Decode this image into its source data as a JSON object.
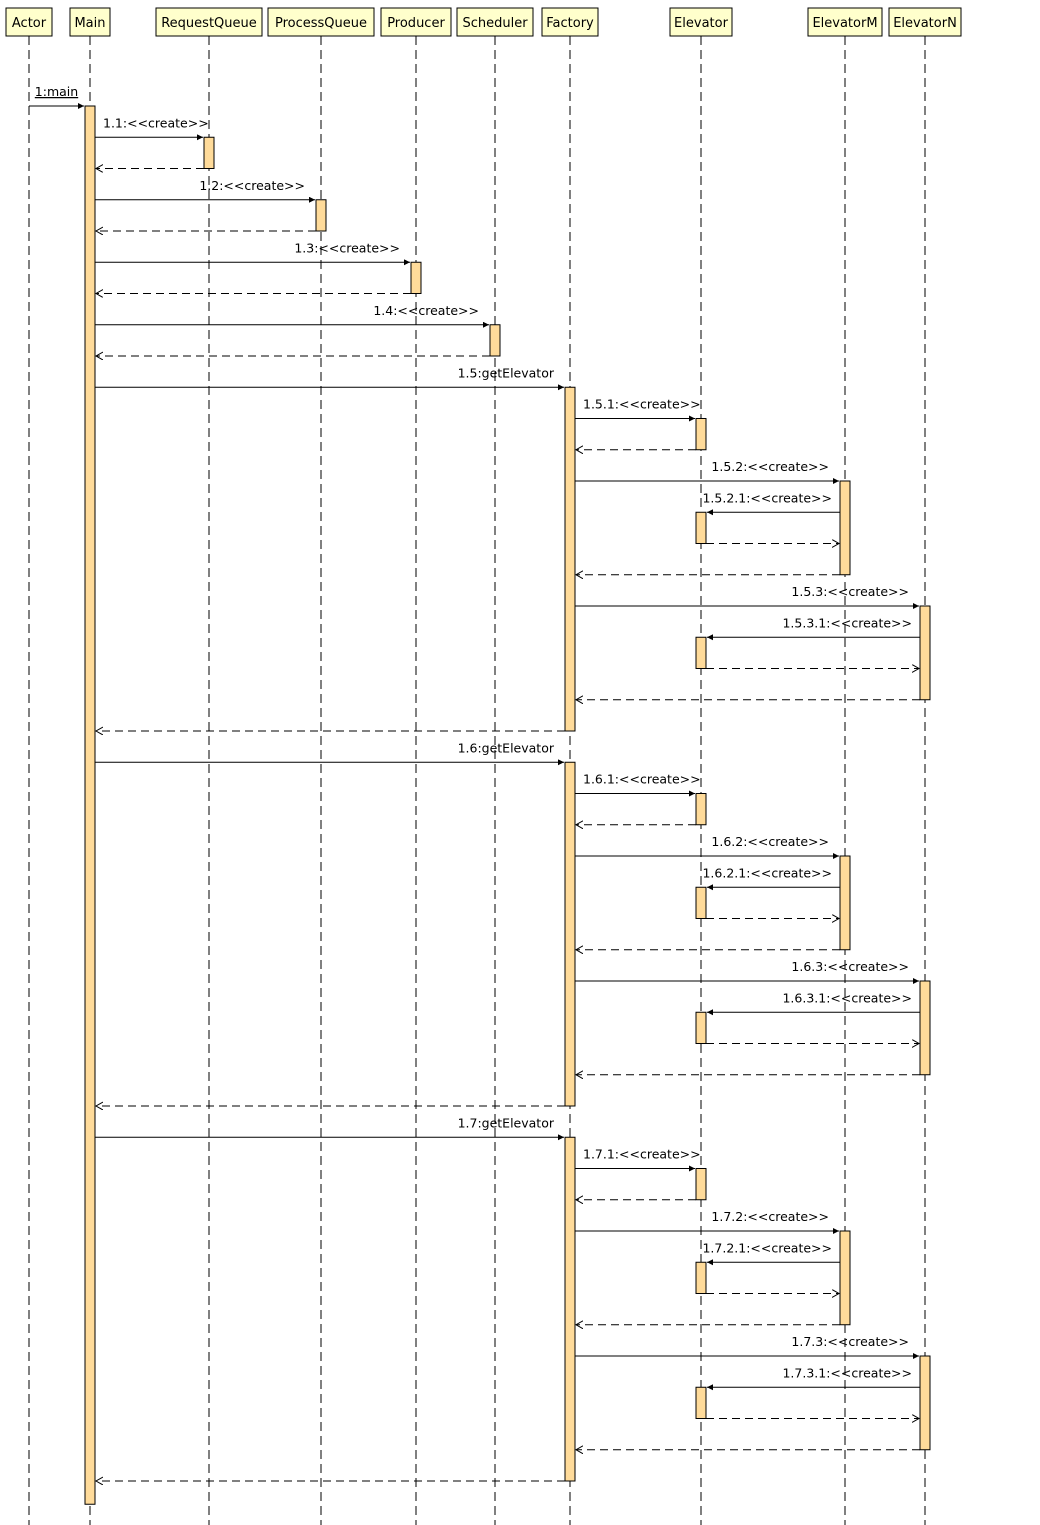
{
  "colors": {
    "participant_fill": "#FFFFCC",
    "activation_fill": "#FFDB9A",
    "line": "#000000",
    "background": "#FFFFFF"
  },
  "participants": [
    {
      "id": "actor",
      "label": "Actor"
    },
    {
      "id": "main",
      "label": "Main"
    },
    {
      "id": "requestqueue",
      "label": "RequestQueue"
    },
    {
      "id": "processqueue",
      "label": "ProcessQueue"
    },
    {
      "id": "producer",
      "label": "Producer"
    },
    {
      "id": "scheduler",
      "label": "Scheduler"
    },
    {
      "id": "factory",
      "label": "Factory"
    },
    {
      "id": "elevator",
      "label": "Elevator"
    },
    {
      "id": "elevatorm",
      "label": "ElevatorM"
    },
    {
      "id": "elevatorn",
      "label": "ElevatorN"
    }
  ],
  "activations": [
    {
      "participant": "main",
      "from": "1",
      "to": "end"
    },
    {
      "participant": "requestqueue",
      "from": "1.1",
      "to": "1.1r"
    },
    {
      "participant": "processqueue",
      "from": "1.2",
      "to": "1.2r"
    },
    {
      "participant": "producer",
      "from": "1.3",
      "to": "1.3r"
    },
    {
      "participant": "scheduler",
      "from": "1.4",
      "to": "1.4r"
    },
    {
      "participant": "factory",
      "from": "1.5",
      "to": "1.5r"
    },
    {
      "participant": "elevator",
      "from": "1.5.1",
      "to": "1.5.1r"
    },
    {
      "participant": "elevatorm",
      "from": "1.5.2",
      "to": "1.5.2r"
    },
    {
      "participant": "elevator",
      "from": "1.5.2.1",
      "to": "1.5.2.1r"
    },
    {
      "participant": "elevatorn",
      "from": "1.5.3",
      "to": "1.5.3r"
    },
    {
      "participant": "elevator",
      "from": "1.5.3.1",
      "to": "1.5.3.1r"
    },
    {
      "participant": "factory",
      "from": "1.6",
      "to": "1.6r"
    },
    {
      "participant": "elevator",
      "from": "1.6.1",
      "to": "1.6.1r"
    },
    {
      "participant": "elevatorm",
      "from": "1.6.2",
      "to": "1.6.2r"
    },
    {
      "participant": "elevator",
      "from": "1.6.2.1",
      "to": "1.6.2.1r"
    },
    {
      "participant": "elevatorn",
      "from": "1.6.3",
      "to": "1.6.3r"
    },
    {
      "participant": "elevator",
      "from": "1.6.3.1",
      "to": "1.6.3.1r"
    },
    {
      "participant": "factory",
      "from": "1.7",
      "to": "1.7r"
    },
    {
      "participant": "elevator",
      "from": "1.7.1",
      "to": "1.7.1r"
    },
    {
      "participant": "elevatorm",
      "from": "1.7.2",
      "to": "1.7.2r"
    },
    {
      "participant": "elevator",
      "from": "1.7.2.1",
      "to": "1.7.2.1r"
    },
    {
      "participant": "elevatorn",
      "from": "1.7.3",
      "to": "1.7.3r"
    },
    {
      "participant": "elevator",
      "from": "1.7.3.1",
      "to": "1.7.3.1r"
    }
  ],
  "messages": [
    {
      "id": "1",
      "from": "actor",
      "to": "main",
      "label": "1:main",
      "kind": "call",
      "underline": true
    },
    {
      "id": "1.1",
      "from": "main",
      "to": "requestqueue",
      "label": "1.1:<<create>>",
      "kind": "call"
    },
    {
      "id": "1.1r",
      "from": "requestqueue",
      "to": "main",
      "label": "",
      "kind": "return"
    },
    {
      "id": "1.2",
      "from": "main",
      "to": "processqueue",
      "label": "1.2:<<create>>",
      "kind": "call"
    },
    {
      "id": "1.2r",
      "from": "processqueue",
      "to": "main",
      "label": "",
      "kind": "return"
    },
    {
      "id": "1.3",
      "from": "main",
      "to": "producer",
      "label": "1.3:<<create>>",
      "kind": "call"
    },
    {
      "id": "1.3r",
      "from": "producer",
      "to": "main",
      "label": "",
      "kind": "return"
    },
    {
      "id": "1.4",
      "from": "main",
      "to": "scheduler",
      "label": "1.4:<<create>>",
      "kind": "call"
    },
    {
      "id": "1.4r",
      "from": "scheduler",
      "to": "main",
      "label": "",
      "kind": "return"
    },
    {
      "id": "1.5",
      "from": "main",
      "to": "factory",
      "label": "1.5:getElevator",
      "kind": "call"
    },
    {
      "id": "1.5.1",
      "from": "factory",
      "to": "elevator",
      "label": "1.5.1:<<create>>",
      "kind": "call"
    },
    {
      "id": "1.5.1r",
      "from": "elevator",
      "to": "factory",
      "label": "",
      "kind": "return"
    },
    {
      "id": "1.5.2",
      "from": "factory",
      "to": "elevatorm",
      "label": "1.5.2:<<create>>",
      "kind": "call"
    },
    {
      "id": "1.5.2.1",
      "from": "elevatorm",
      "to": "elevator",
      "label": "1.5.2.1:<<create>>",
      "kind": "call"
    },
    {
      "id": "1.5.2.1r",
      "from": "elevator",
      "to": "elevatorm",
      "label": "",
      "kind": "return"
    },
    {
      "id": "1.5.2r",
      "from": "elevatorm",
      "to": "factory",
      "label": "",
      "kind": "return"
    },
    {
      "id": "1.5.3",
      "from": "factory",
      "to": "elevatorn",
      "label": "1.5.3:<<create>>",
      "kind": "call"
    },
    {
      "id": "1.5.3.1",
      "from": "elevatorn",
      "to": "elevator",
      "label": "1.5.3.1:<<create>>",
      "kind": "call"
    },
    {
      "id": "1.5.3.1r",
      "from": "elevator",
      "to": "elevatorn",
      "label": "",
      "kind": "return"
    },
    {
      "id": "1.5.3r",
      "from": "elevatorn",
      "to": "factory",
      "label": "",
      "kind": "return"
    },
    {
      "id": "1.5r",
      "from": "factory",
      "to": "main",
      "label": "",
      "kind": "return"
    },
    {
      "id": "1.6",
      "from": "main",
      "to": "factory",
      "label": "1.6:getElevator",
      "kind": "call"
    },
    {
      "id": "1.6.1",
      "from": "factory",
      "to": "elevator",
      "label": "1.6.1:<<create>>",
      "kind": "call"
    },
    {
      "id": "1.6.1r",
      "from": "elevator",
      "to": "factory",
      "label": "",
      "kind": "return"
    },
    {
      "id": "1.6.2",
      "from": "factory",
      "to": "elevatorm",
      "label": "1.6.2:<<create>>",
      "kind": "call"
    },
    {
      "id": "1.6.2.1",
      "from": "elevatorm",
      "to": "elevator",
      "label": "1.6.2.1:<<create>>",
      "kind": "call"
    },
    {
      "id": "1.6.2.1r",
      "from": "elevator",
      "to": "elevatorm",
      "label": "",
      "kind": "return"
    },
    {
      "id": "1.6.2r",
      "from": "elevatorm",
      "to": "factory",
      "label": "",
      "kind": "return"
    },
    {
      "id": "1.6.3",
      "from": "factory",
      "to": "elevatorn",
      "label": "1.6.3:<<create>>",
      "kind": "call"
    },
    {
      "id": "1.6.3.1",
      "from": "elevatorn",
      "to": "elevator",
      "label": "1.6.3.1:<<create>>",
      "kind": "call"
    },
    {
      "id": "1.6.3.1r",
      "from": "elevator",
      "to": "elevatorn",
      "label": "",
      "kind": "return"
    },
    {
      "id": "1.6.3r",
      "from": "elevatorn",
      "to": "factory",
      "label": "",
      "kind": "return"
    },
    {
      "id": "1.6r",
      "from": "factory",
      "to": "main",
      "label": "",
      "kind": "return"
    },
    {
      "id": "1.7",
      "from": "main",
      "to": "factory",
      "label": "1.7:getElevator",
      "kind": "call"
    },
    {
      "id": "1.7.1",
      "from": "factory",
      "to": "elevator",
      "label": "1.7.1:<<create>>",
      "kind": "call"
    },
    {
      "id": "1.7.1r",
      "from": "elevator",
      "to": "factory",
      "label": "",
      "kind": "return"
    },
    {
      "id": "1.7.2",
      "from": "factory",
      "to": "elevatorm",
      "label": "1.7.2:<<create>>",
      "kind": "call"
    },
    {
      "id": "1.7.2.1",
      "from": "elevatorm",
      "to": "elevator",
      "label": "1.7.2.1:<<create>>",
      "kind": "call"
    },
    {
      "id": "1.7.2.1r",
      "from": "elevator",
      "to": "elevatorm",
      "label": "",
      "kind": "return"
    },
    {
      "id": "1.7.2r",
      "from": "elevatorm",
      "to": "factory",
      "label": "",
      "kind": "return"
    },
    {
      "id": "1.7.3",
      "from": "factory",
      "to": "elevatorn",
      "label": "1.7.3:<<create>>",
      "kind": "call"
    },
    {
      "id": "1.7.3.1",
      "from": "elevatorn",
      "to": "elevator",
      "label": "1.7.3.1:<<create>>",
      "kind": "call"
    },
    {
      "id": "1.7.3.1r",
      "from": "elevator",
      "to": "elevatorn",
      "label": "",
      "kind": "return"
    },
    {
      "id": "1.7.3r",
      "from": "elevatorn",
      "to": "factory",
      "label": "",
      "kind": "return"
    },
    {
      "id": "1.7r",
      "from": "factory",
      "to": "main",
      "label": "",
      "kind": "return"
    }
  ]
}
